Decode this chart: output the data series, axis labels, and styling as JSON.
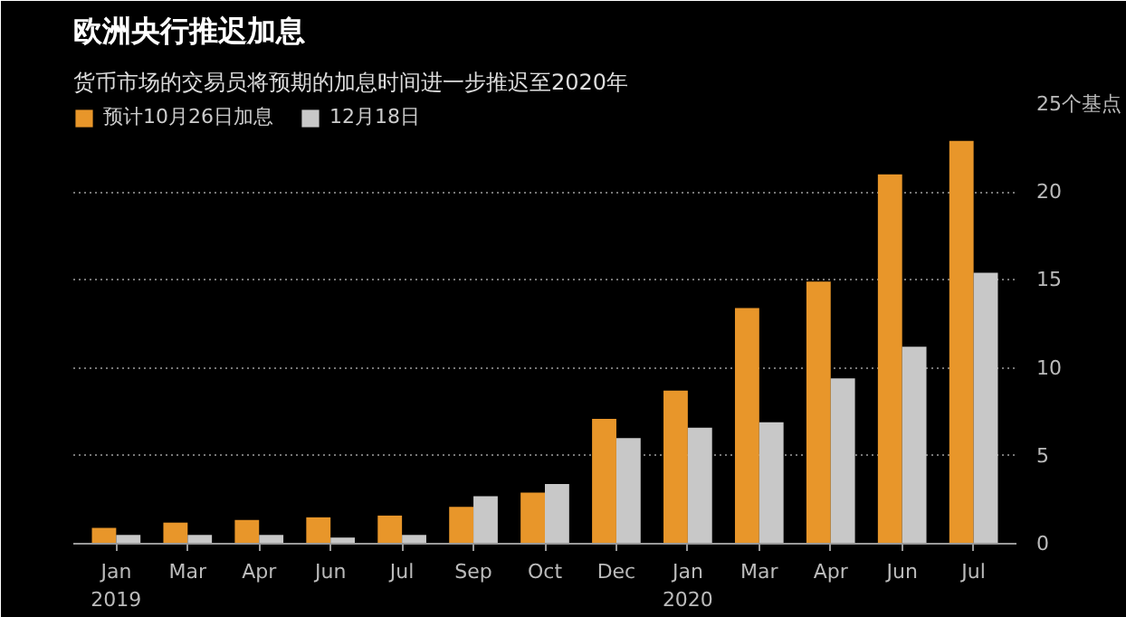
{
  "chart_data": {
    "type": "bar",
    "title": "欧洲央行推迟加息",
    "subtitle": "货币市场的交易员将预期的加息时间进一步推迟至2020年",
    "categories": [
      "Jan\n2019",
      "Mar",
      "Apr",
      "Jun",
      "Jul",
      "Sep",
      "Oct",
      "Dec",
      "Jan\n2020",
      "Mar",
      "Apr",
      "Jun",
      "Jul"
    ],
    "series": [
      {
        "name": "预计10月26日加息",
        "color": "#e8962a",
        "values": [
          0.9,
          1.2,
          1.35,
          1.5,
          1.6,
          2.1,
          2.9,
          7.1,
          8.7,
          13.4,
          14.9,
          21.0,
          22.9
        ]
      },
      {
        "name": "12月18日",
        "color": "#c8c8c8",
        "values": [
          0.5,
          0.5,
          0.5,
          0.35,
          0.5,
          2.7,
          3.4,
          6.0,
          6.6,
          6.9,
          9.4,
          11.2,
          15.4
        ]
      }
    ],
    "ylim": [
      0,
      25
    ],
    "yticks": [
      0,
      5,
      10,
      15,
      20,
      {
        "value": 25,
        "label": "25个基点"
      }
    ],
    "grid": "y",
    "legend": "top left"
  }
}
